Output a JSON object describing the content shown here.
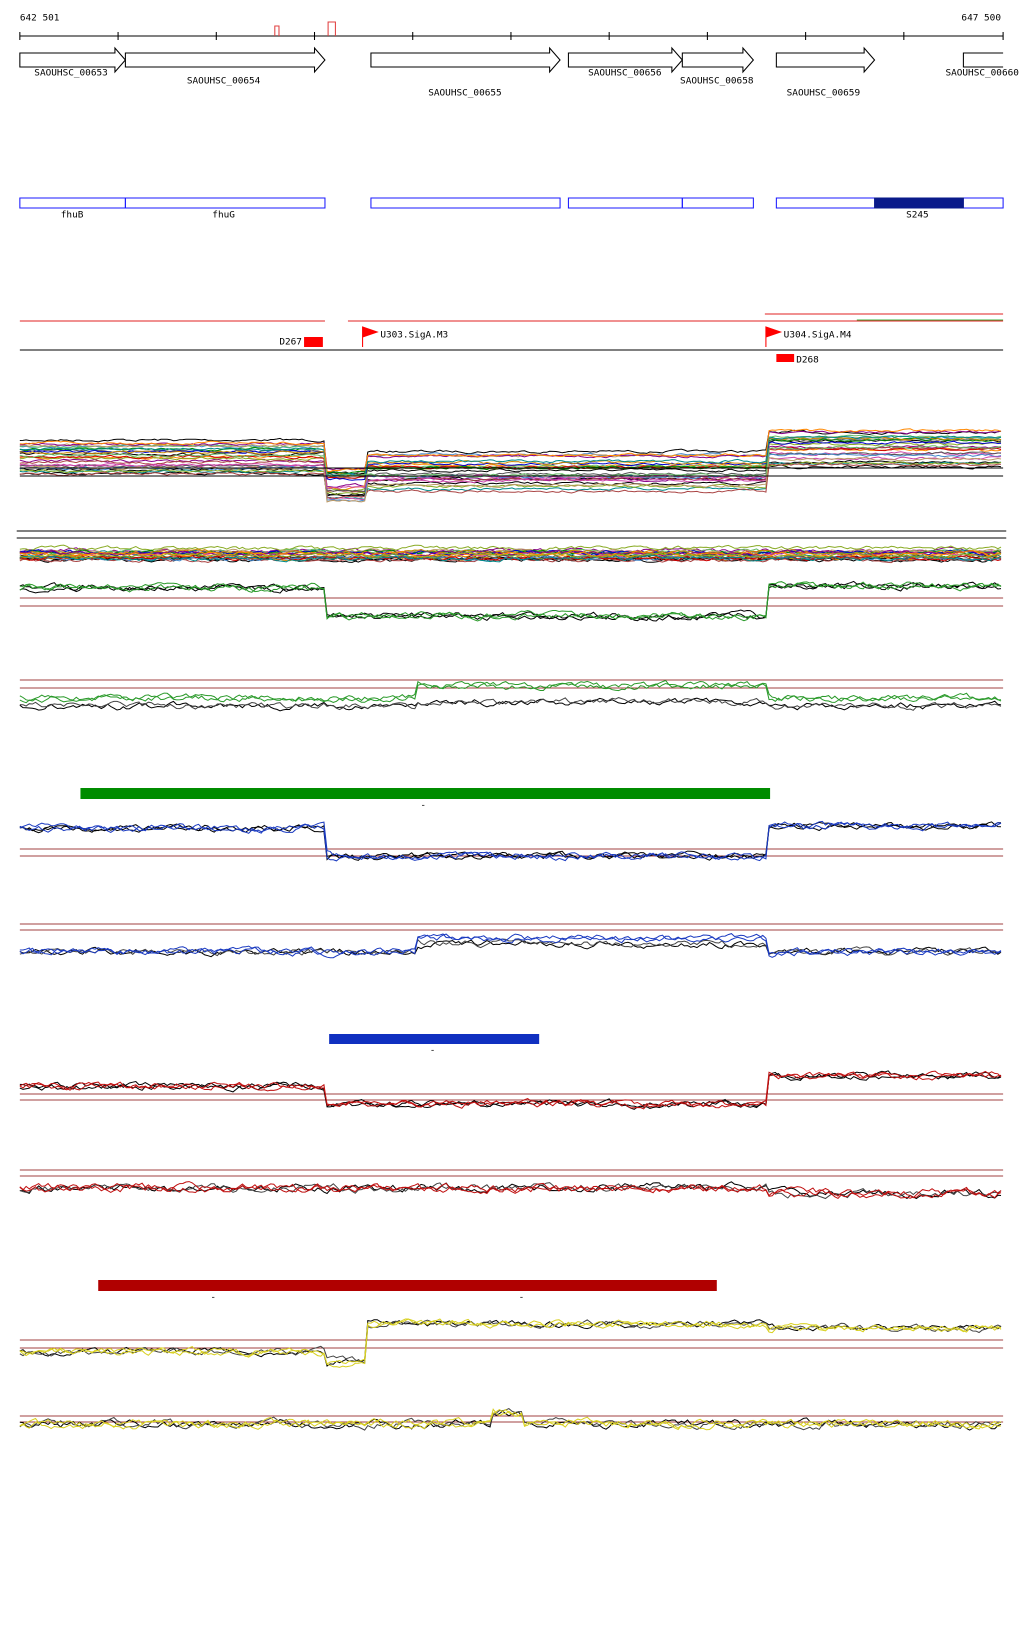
{
  "header": {
    "start": "642 501",
    "end": "647 500"
  },
  "genes": [
    "SAOUHSC_00653",
    "SAOUHSC_00654",
    "SAOUHSC_00655",
    "SAOUHSC_00656",
    "SAOUHSC_00658",
    "SAOUHSC_00659",
    "SAOUHSC_00660"
  ],
  "features": [
    "fhuB",
    "fhuG",
    "S245"
  ],
  "regulatory": [
    "D267",
    "U303.SigA.M3",
    "U304.SigA.M4",
    "D268"
  ],
  "bar_marks": [
    "-",
    "-",
    "-",
    "-"
  ]
}
